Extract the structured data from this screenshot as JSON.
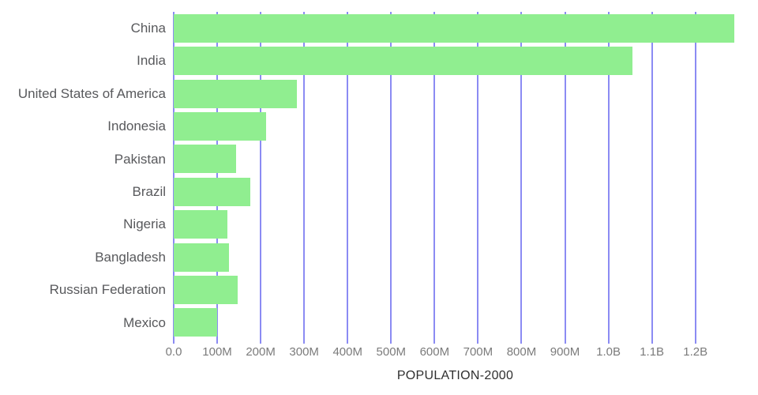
{
  "chart_data": {
    "type": "bar",
    "orientation": "horizontal",
    "title": "",
    "xlabel": "POPULATION-2000",
    "ylabel": "",
    "categories": [
      "China",
      "India",
      "United States of America",
      "Indonesia",
      "Pakistan",
      "Brazil",
      "Nigeria",
      "Bangladesh",
      "Russian Federation",
      "Mexico"
    ],
    "values": [
      1290000000,
      1056000000,
      284000000,
      212000000,
      143000000,
      177000000,
      123000000,
      128000000,
      147000000,
      100000000
    ],
    "unit": "people",
    "xlim": [
      0,
      1295000000
    ],
    "xticks": [
      {
        "value": 0,
        "label": "0.0"
      },
      {
        "value": 100000000,
        "label": "100M"
      },
      {
        "value": 200000000,
        "label": "200M"
      },
      {
        "value": 300000000,
        "label": "300M"
      },
      {
        "value": 400000000,
        "label": "400M"
      },
      {
        "value": 500000000,
        "label": "500M"
      },
      {
        "value": 600000000,
        "label": "600M"
      },
      {
        "value": 700000000,
        "label": "700M"
      },
      {
        "value": 800000000,
        "label": "800M"
      },
      {
        "value": 900000000,
        "label": "900M"
      },
      {
        "value": 1000000000,
        "label": "1.0B"
      },
      {
        "value": 1100000000,
        "label": "1.1B"
      },
      {
        "value": 1200000000,
        "label": "1.2B"
      }
    ],
    "grid": true,
    "legend_position": "none"
  },
  "style": {
    "bar_color": "#90ee90",
    "grid_color": "#7e7ef2",
    "category_label_color": "#58595c",
    "tick_label_color": "#7b7b7b",
    "axis_title_color": "#2f2f2f",
    "background_color": "#ffffff"
  }
}
